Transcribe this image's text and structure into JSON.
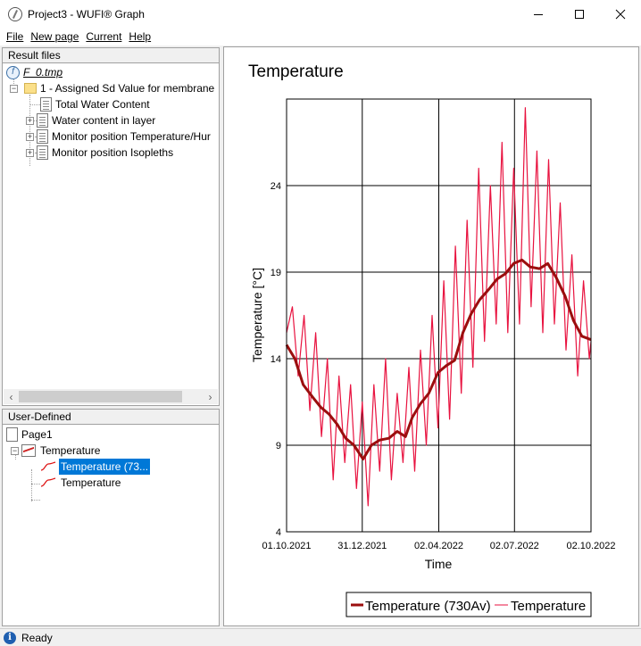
{
  "window": {
    "title": "Project3 - WUFI® Graph"
  },
  "menu": [
    {
      "label": "File",
      "underline": "F"
    },
    {
      "label": "New page",
      "underline": "N"
    },
    {
      "label": "Current",
      "underline": "C"
    },
    {
      "label": "Help",
      "underline": "H"
    }
  ],
  "result_files": {
    "header": "Result files",
    "root": "F_0.tmp",
    "case": "1 - Assigned Sd Value for membrane",
    "items": [
      "Total Water Content",
      "Water content in layer",
      "Monitor position Temperature/Hur",
      "Monitor position Isopleths"
    ]
  },
  "user_defined": {
    "header": "User-Defined",
    "page": "Page1",
    "graph": "Temperature",
    "curves": [
      "Temperature (73...",
      "Temperature"
    ]
  },
  "status": {
    "text": "Ready"
  },
  "colors": {
    "selection": "#0078d7",
    "avg_line": "#9b0e0e",
    "raw_line": "#e8123f"
  },
  "chart_data": {
    "type": "line",
    "title": "Temperature",
    "xlabel": "Time",
    "ylabel": "Temperature [°C]",
    "x_range": [
      "2021-10-01",
      "2022-10-02"
    ],
    "x_ticks": [
      "01.10.2021",
      "31.12.2021",
      "02.04.2022",
      "02.07.2022",
      "02.10.2022"
    ],
    "ylim": [
      4,
      29
    ],
    "y_ticks": [
      4,
      9,
      14,
      19,
      24
    ],
    "grid": true,
    "legend_position": "bottom-right",
    "series": [
      {
        "name": "Temperature (730Av)",
        "style": "thick",
        "x": [
          "2021-10-01",
          "2021-10-11",
          "2021-10-21",
          "2021-11-01",
          "2021-11-11",
          "2021-11-21",
          "2021-12-01",
          "2021-12-11",
          "2021-12-21",
          "2022-01-01",
          "2022-01-11",
          "2022-01-21",
          "2022-02-01",
          "2022-02-11",
          "2022-02-21",
          "2022-03-01",
          "2022-03-11",
          "2022-03-21",
          "2022-04-01",
          "2022-04-11",
          "2022-04-21",
          "2022-05-01",
          "2022-05-11",
          "2022-05-21",
          "2022-06-01",
          "2022-06-11",
          "2022-06-21",
          "2022-07-01",
          "2022-07-11",
          "2022-07-21",
          "2022-08-01",
          "2022-08-11",
          "2022-08-21",
          "2022-09-01",
          "2022-09-11",
          "2022-09-21",
          "2022-10-02"
        ],
        "values": [
          14.8,
          14.0,
          12.5,
          11.8,
          11.2,
          10.8,
          10.2,
          9.4,
          9.0,
          8.2,
          9.0,
          9.3,
          9.4,
          9.8,
          9.5,
          10.6,
          11.4,
          12.0,
          13.2,
          13.6,
          13.9,
          15.5,
          16.6,
          17.4,
          18.0,
          18.6,
          18.9,
          19.5,
          19.7,
          19.3,
          19.2,
          19.5,
          18.7,
          17.6,
          16.2,
          15.3,
          15.1
        ]
      },
      {
        "name": "Temperature",
        "style": "thin",
        "x": [
          "2021-10-01",
          "2021-10-08",
          "2021-10-15",
          "2021-10-22",
          "2021-10-29",
          "2021-11-05",
          "2021-11-12",
          "2021-11-19",
          "2021-11-26",
          "2021-12-03",
          "2021-12-10",
          "2021-12-17",
          "2021-12-24",
          "2021-12-31",
          "2022-01-07",
          "2022-01-14",
          "2022-01-21",
          "2022-01-28",
          "2022-02-04",
          "2022-02-11",
          "2022-02-18",
          "2022-02-25",
          "2022-03-04",
          "2022-03-11",
          "2022-03-18",
          "2022-03-25",
          "2022-04-01",
          "2022-04-08",
          "2022-04-15",
          "2022-04-22",
          "2022-04-29",
          "2022-05-06",
          "2022-05-13",
          "2022-05-20",
          "2022-05-27",
          "2022-06-03",
          "2022-06-10",
          "2022-06-17",
          "2022-06-24",
          "2022-07-01",
          "2022-07-08",
          "2022-07-15",
          "2022-07-22",
          "2022-07-29",
          "2022-08-05",
          "2022-08-12",
          "2022-08-19",
          "2022-08-26",
          "2022-09-02",
          "2022-09-09",
          "2022-09-16",
          "2022-09-23",
          "2022-09-30",
          "2022-10-02"
        ],
        "values": [
          15.5,
          17.0,
          13.0,
          16.5,
          11.0,
          15.5,
          9.5,
          14.0,
          7.0,
          13.0,
          8.0,
          12.5,
          6.5,
          11.5,
          5.5,
          12.5,
          7.5,
          14.0,
          7.0,
          12.0,
          8.0,
          13.5,
          7.5,
          14.5,
          9.0,
          16.5,
          10.0,
          18.5,
          10.5,
          20.5,
          12.0,
          22.0,
          13.5,
          25.0,
          15.0,
          24.0,
          16.0,
          26.5,
          15.5,
          25.0,
          16.0,
          28.5,
          17.0,
          26.0,
          15.5,
          25.5,
          16.0,
          23.0,
          14.5,
          20.0,
          13.0,
          18.5,
          14.0,
          15.0
        ]
      }
    ]
  }
}
